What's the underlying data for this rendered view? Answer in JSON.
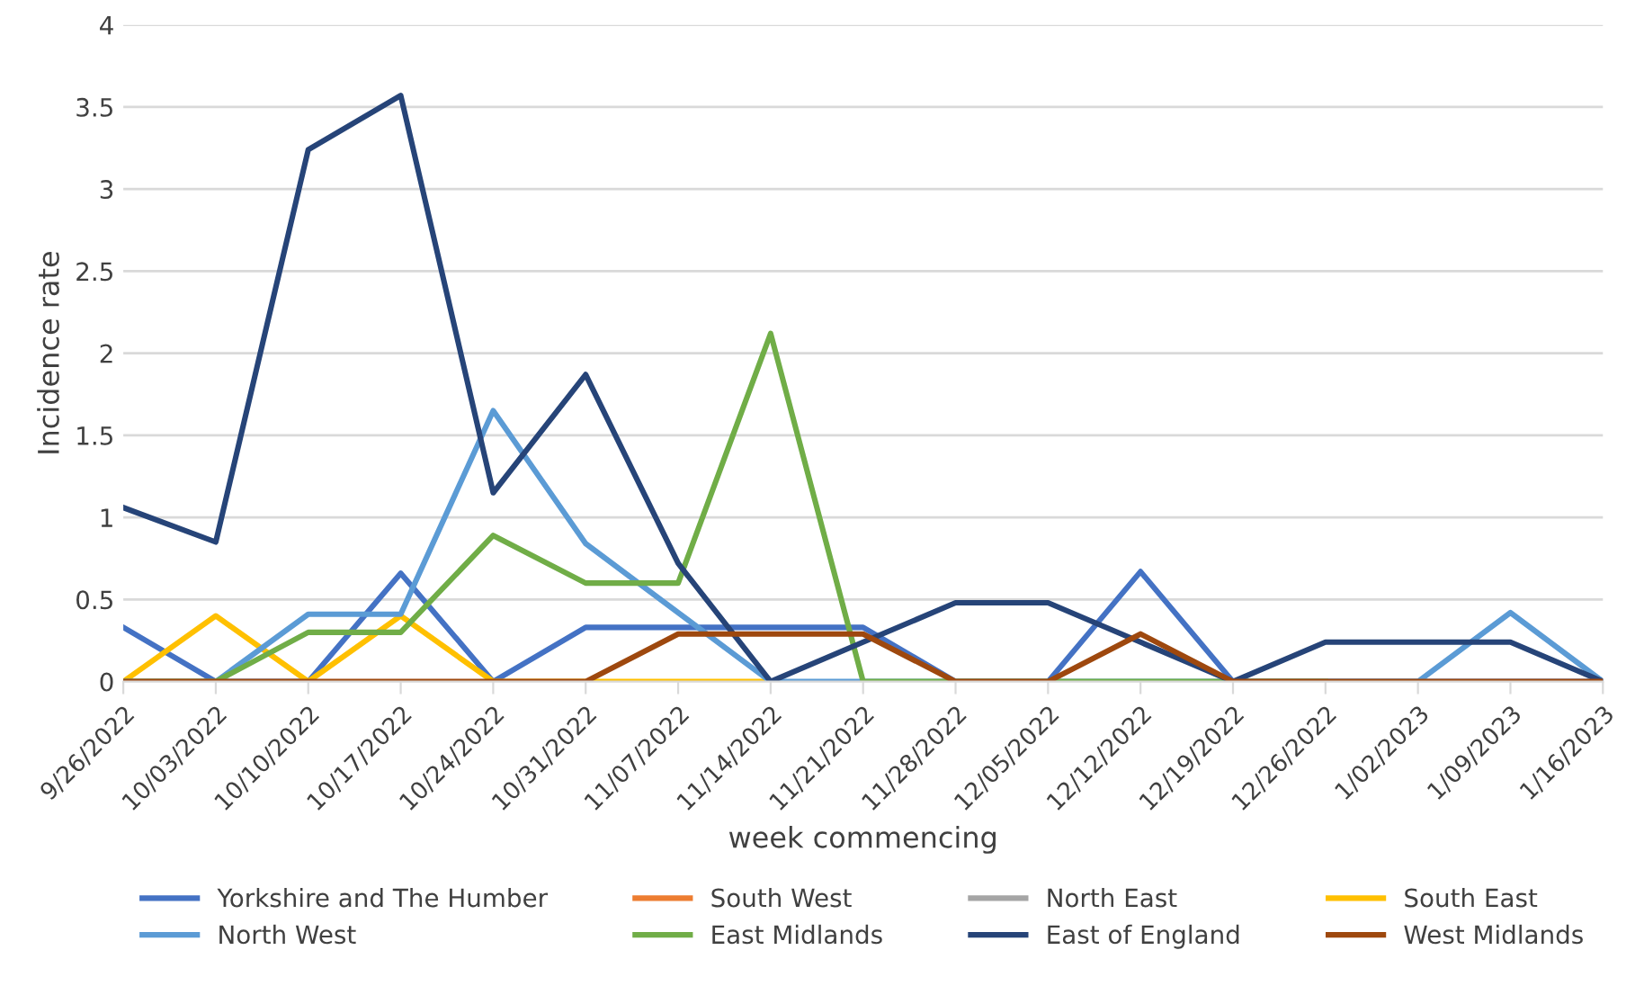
{
  "chart_data": {
    "type": "line",
    "xlabel": "week commencing",
    "ylabel": "Incidence rate",
    "categories": [
      "9/26/2022",
      "10/03/2022",
      "10/10/2022",
      "10/17/2022",
      "10/24/2022",
      "10/31/2022",
      "11/07/2022",
      "11/14/2022",
      "11/21/2022",
      "11/28/2022",
      "12/05/2022",
      "12/12/2022",
      "12/19/2022",
      "12/26/2022",
      "1/02/2023",
      "1/09/2023",
      "1/16/2023"
    ],
    "series": [
      {
        "name": "Yorkshire and The Humber",
        "color": "#4472c4",
        "values": [
          0.33,
          0,
          0,
          0.66,
          0,
          0.33,
          0.33,
          0.33,
          0.33,
          0,
          0,
          0.67,
          0,
          0,
          0,
          0,
          0
        ]
      },
      {
        "name": "South West",
        "color": "#ed7d31",
        "values": [
          null,
          null,
          null,
          null,
          null,
          null,
          null,
          null,
          null,
          null,
          null,
          null,
          null,
          null,
          null,
          null,
          null
        ]
      },
      {
        "name": "North East",
        "color": "#a5a5a5",
        "values": [
          null,
          null,
          null,
          null,
          null,
          null,
          null,
          null,
          null,
          null,
          null,
          null,
          null,
          null,
          null,
          null,
          null
        ]
      },
      {
        "name": "South East",
        "color": "#ffc000",
        "values": [
          0,
          0.4,
          0,
          0.4,
          0,
          0,
          0,
          0,
          null,
          null,
          null,
          null,
          null,
          null,
          null,
          null,
          null
        ]
      },
      {
        "name": "North West",
        "color": "#5b9bd5",
        "values": [
          0,
          0,
          0.41,
          0.41,
          1.65,
          0.84,
          0.42,
          0,
          0,
          0,
          0,
          0,
          0,
          0,
          0,
          0.42,
          0
        ]
      },
      {
        "name": "East Midlands",
        "color": "#70ad47",
        "values": [
          0,
          0,
          0.3,
          0.3,
          0.89,
          0.6,
          0.6,
          2.12,
          0,
          0,
          0,
          0,
          0,
          0,
          null,
          null,
          null
        ]
      },
      {
        "name": "East of England",
        "color": "#264478",
        "values": [
          1.06,
          0.85,
          3.24,
          3.57,
          1.15,
          1.87,
          0.72,
          0,
          0.24,
          0.48,
          0.48,
          0.24,
          0,
          0.24,
          0.24,
          0.24,
          0
        ]
      },
      {
        "name": "West Midlands",
        "color": "#9e480e",
        "values": [
          0,
          0,
          0,
          0,
          0,
          0,
          0.29,
          0.29,
          0.29,
          0,
          0,
          0.29,
          0,
          0,
          0,
          0,
          0
        ]
      }
    ],
    "ylim": [
      0,
      4
    ],
    "yticks": [
      0,
      0.5,
      1,
      1.5,
      2,
      2.5,
      3,
      3.5,
      4
    ],
    "grid": "y",
    "legend": "bottom",
    "marker": "none",
    "line_style": "solid"
  }
}
